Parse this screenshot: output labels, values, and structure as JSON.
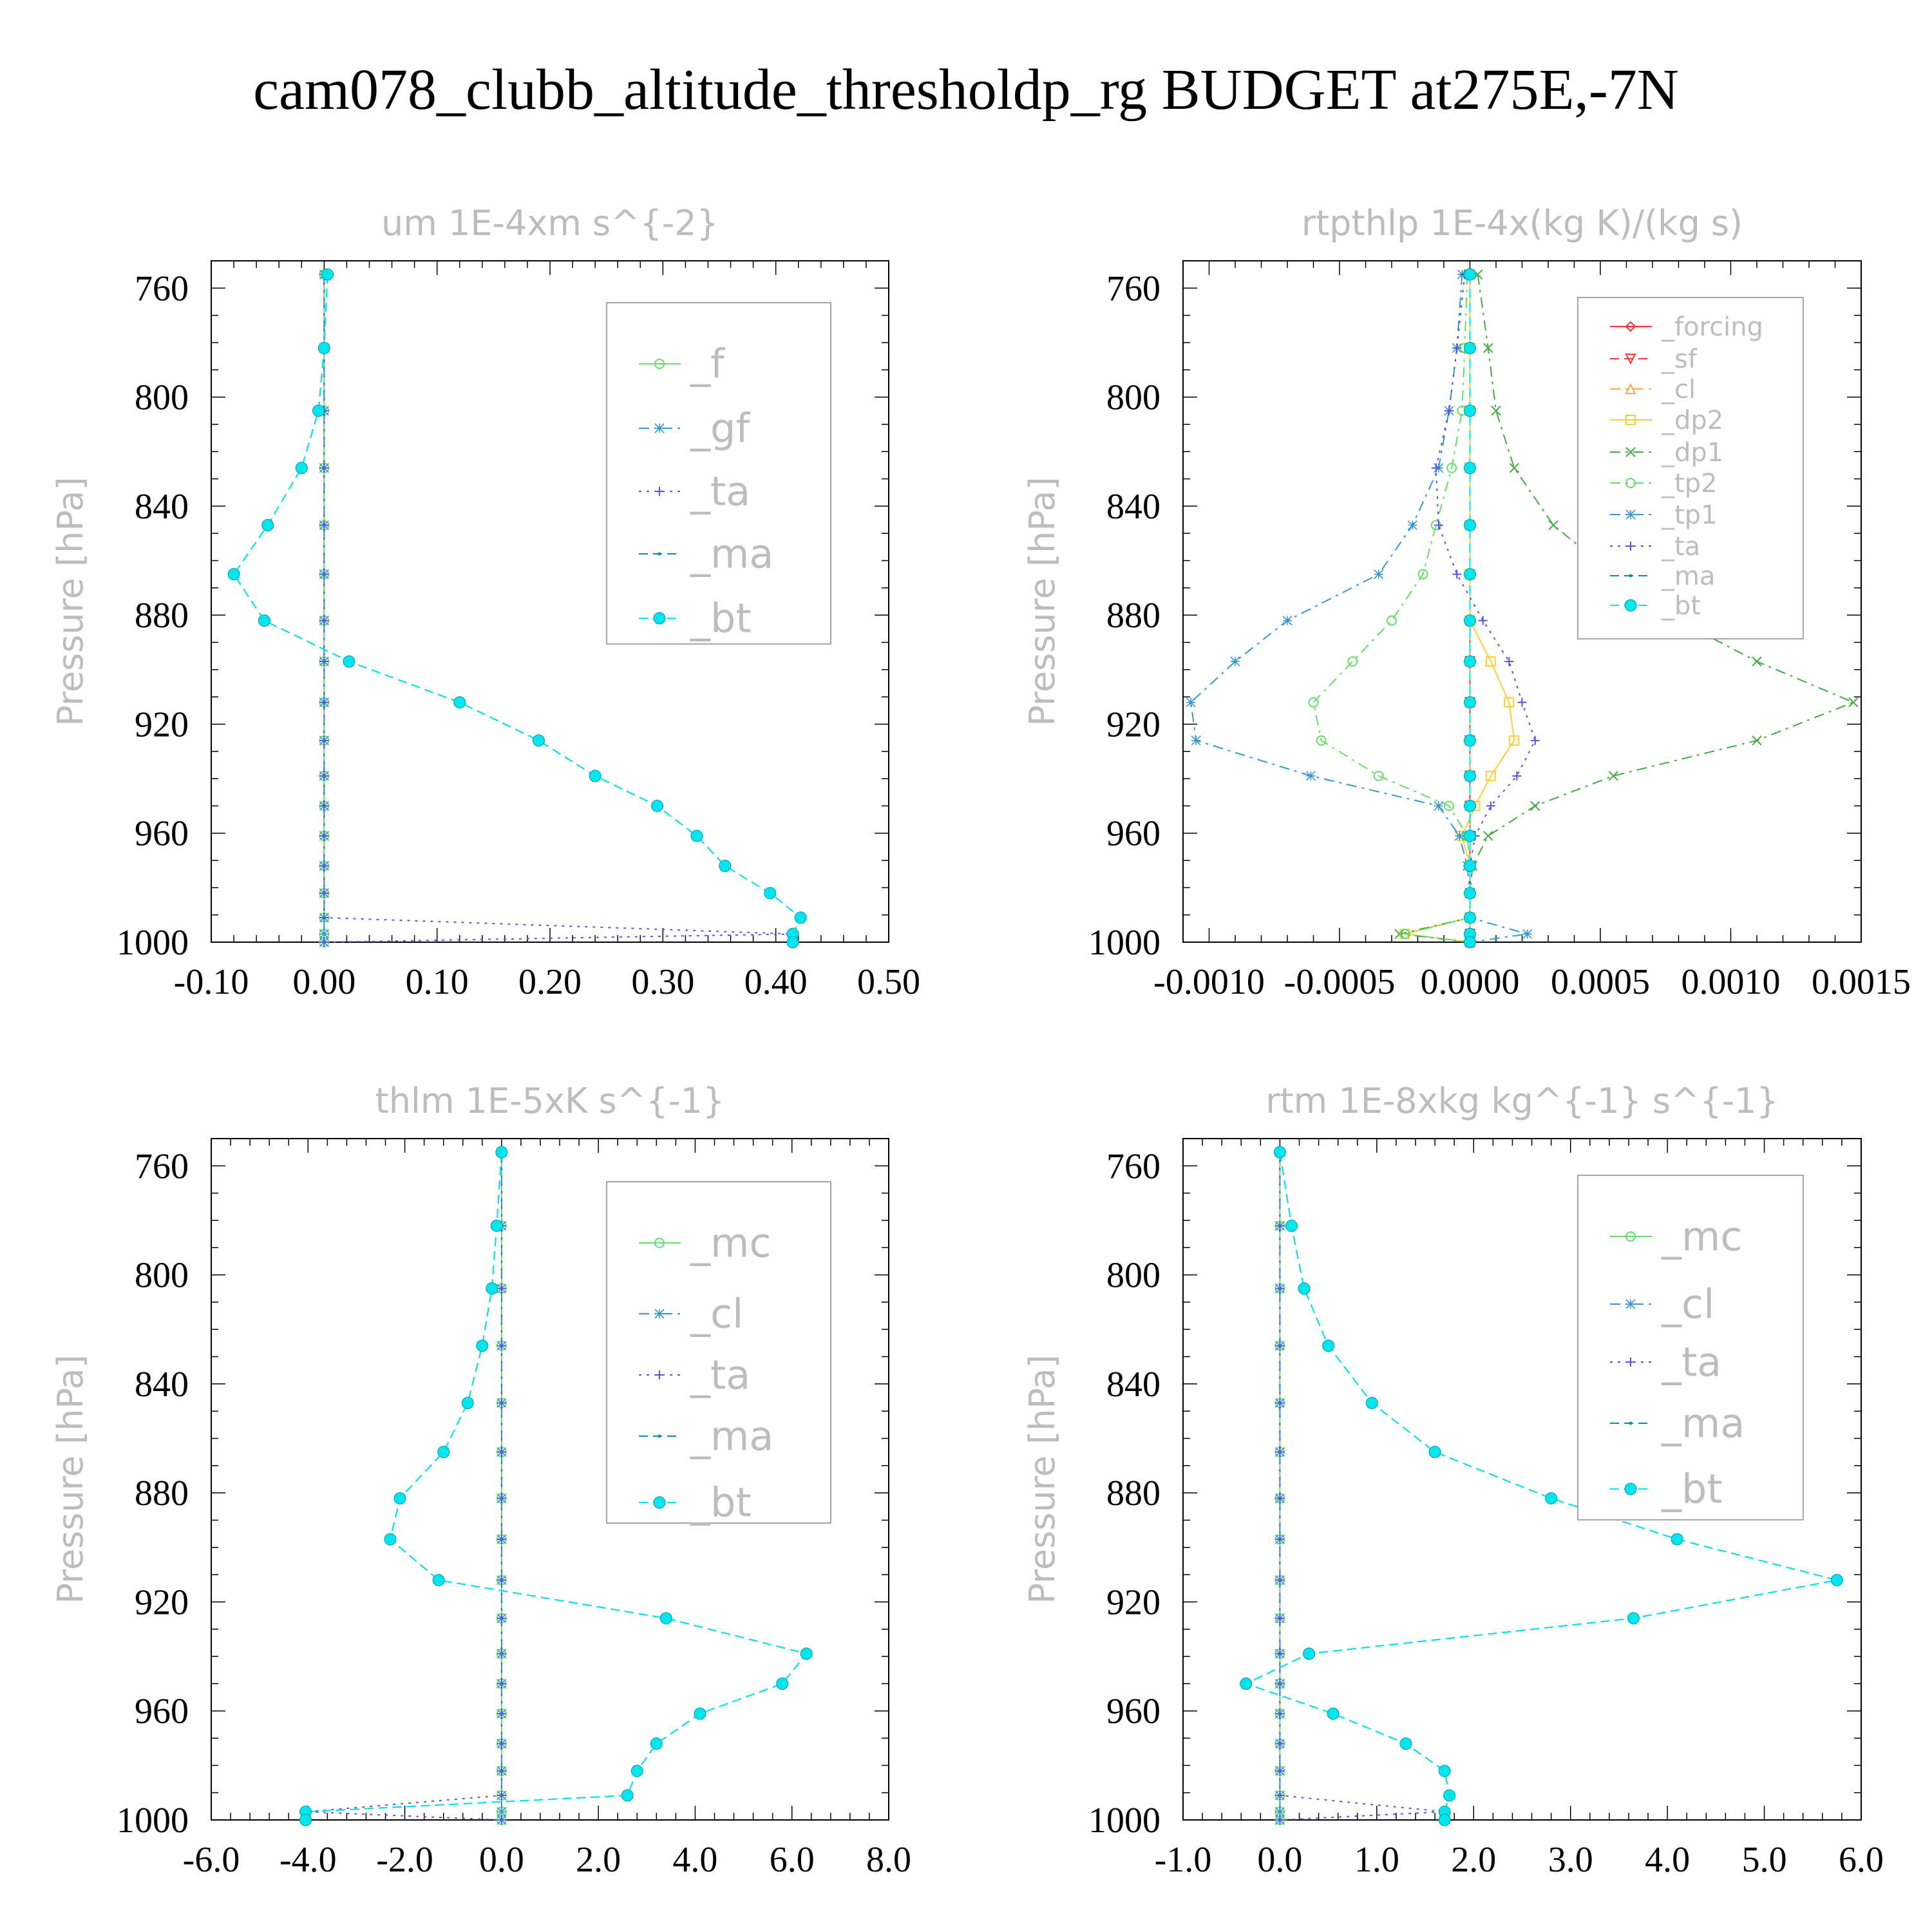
{
  "title": "cam078_clubb_altitude_thresholdp_rg  BUDGET at275E,-7N",
  "chart_data": [
    {
      "type": "line",
      "title": "um  1E-4xm s^{-2}",
      "ylabel": "Pressure [hPa]",
      "xlim": [
        -0.1,
        0.5
      ],
      "ylim": [
        1000,
        750
      ],
      "xticks": [
        "-0.10",
        "0.00",
        "0.10",
        "0.20",
        "0.30",
        "0.40",
        "0.50"
      ],
      "xtick_values": [
        -0.1,
        0.0,
        0.1,
        0.2,
        0.3,
        0.4,
        0.5
      ],
      "yticks": [
        "760",
        "800",
        "840",
        "880",
        "920",
        "960",
        "1000"
      ],
      "ytick_values": [
        760,
        800,
        840,
        880,
        920,
        960,
        1000
      ],
      "legend_placement": "top-right",
      "legend_font": 62,
      "y": [
        755,
        782,
        805,
        826,
        847,
        865,
        882,
        897,
        912,
        926,
        939,
        950,
        961,
        972,
        982,
        991,
        997,
        1000
      ],
      "series": [
        {
          "name": "_f",
          "color": "#66dd66",
          "marker": "circle",
          "dash": "solid",
          "values": [
            0,
            0,
            0,
            0,
            0,
            0,
            0,
            0,
            0,
            0,
            0,
            0,
            0,
            0,
            0,
            0,
            0,
            0
          ]
        },
        {
          "name": "_gf",
          "color": "#3399cc",
          "marker": "star",
          "dash": "dashdot",
          "values": [
            0,
            0,
            0,
            0,
            0,
            0,
            0,
            0,
            0,
            0,
            0,
            0,
            0,
            0,
            0,
            0,
            0,
            0
          ]
        },
        {
          "name": "_ta",
          "color": "#5555dd",
          "marker": "plus",
          "dash": "dot",
          "values": [
            0,
            0,
            0,
            0,
            0,
            0,
            0,
            0,
            0,
            0,
            0,
            0,
            0,
            0,
            0,
            0,
            0.415,
            0
          ]
        },
        {
          "name": "_ma",
          "color": "#1188bb",
          "marker": "dot",
          "dash": "dash",
          "values": [
            0.003,
            0.0,
            -0.005,
            -0.02,
            -0.05,
            -0.08,
            -0.053,
            0.022,
            0.12,
            0.19,
            0.24,
            0.295,
            0.33,
            0.355,
            0.395,
            0.422,
            0.415,
            0.415
          ]
        },
        {
          "name": "_bt",
          "color": "#00e5ee",
          "marker": "bigdot",
          "dash": "dash",
          "values": [
            0.003,
            0.0,
            -0.005,
            -0.02,
            -0.05,
            -0.08,
            -0.053,
            0.022,
            0.12,
            0.19,
            0.24,
            0.295,
            0.33,
            0.355,
            0.395,
            0.422,
            0.415,
            0.415
          ]
        }
      ]
    },
    {
      "type": "line",
      "title": "rtpthlp  1E-4x(kg K)/(kg s)",
      "ylabel": "Pressure [hPa]",
      "xlim": [
        -0.0011,
        0.0015
      ],
      "ylim": [
        1000,
        750
      ],
      "xticks": [
        "-0.0010",
        "-0.0005",
        "0.0000",
        "0.0005",
        "0.0010",
        "0.0015"
      ],
      "xtick_values": [
        -0.001,
        -0.0005,
        0.0,
        0.0005,
        0.001,
        0.0015
      ],
      "yticks": [
        "760",
        "800",
        "840",
        "880",
        "920",
        "960",
        "1000"
      ],
      "ytick_values": [
        760,
        800,
        840,
        880,
        920,
        960,
        1000
      ],
      "legend_placement": "top-right",
      "legend_font": 40,
      "y": [
        755,
        782,
        805,
        826,
        847,
        865,
        882,
        897,
        912,
        926,
        939,
        950,
        961,
        972,
        982,
        991,
        997,
        1000
      ],
      "series": [
        {
          "name": "_forcing",
          "color": "#ff3333",
          "marker": "diamond",
          "dash": "solid",
          "values": [
            0,
            0,
            0,
            0,
            0,
            0,
            0,
            0,
            0,
            0,
            0,
            0,
            0,
            0,
            0,
            0,
            0,
            0
          ]
        },
        {
          "name": "_sf",
          "color": "#ff3333",
          "marker": "tridown",
          "dash": "dash",
          "values": [
            0,
            0,
            0,
            0,
            0,
            0,
            0,
            0,
            0,
            0,
            0,
            0,
            0,
            0,
            0,
            0,
            0,
            0
          ]
        },
        {
          "name": "_cl",
          "color": "#ffaa44",
          "marker": "triup",
          "dash": "dashdot",
          "values": [
            0,
            0,
            0,
            0,
            0,
            0,
            0,
            0,
            0,
            0,
            0,
            0,
            0,
            0,
            0,
            0,
            0,
            0
          ]
        },
        {
          "name": "_dp2",
          "color": "#ffcc33",
          "marker": "square",
          "dash": "solid",
          "values": [
            0,
            0,
            0,
            0,
            0,
            0,
            0,
            8e-05,
            0.00015,
            0.00017,
            8e-05,
            2e-05,
            -3e-05,
            0,
            0,
            0,
            -0.00025,
            0
          ]
        },
        {
          "name": "_dp1",
          "color": "#44aa44",
          "marker": "cross",
          "dash": "dashdot",
          "values": [
            3e-05,
            7e-05,
            0.0001,
            0.00017,
            0.00032,
            0.00055,
            0.0008,
            0.0011,
            0.00147,
            0.0011,
            0.00055,
            0.00025,
            7e-05,
            1e-05,
            0,
            0,
            -0.00027,
            0
          ]
        },
        {
          "name": "_tp2",
          "color": "#66dd66",
          "marker": "circle",
          "dash": "dashdot",
          "values": [
            -1e-05,
            -2e-05,
            -3e-05,
            -7e-05,
            -0.00013,
            -0.00018,
            -0.0003,
            -0.00045,
            -0.0006,
            -0.00057,
            -0.00035,
            -8e-05,
            -1e-05,
            0,
            0,
            0,
            -0.00025,
            0
          ]
        },
        {
          "name": "_tp1",
          "color": "#3399cc",
          "marker": "star",
          "dash": "dashdot",
          "values": [
            -3e-05,
            -5e-05,
            -8e-05,
            -0.00012,
            -0.00022,
            -0.00035,
            -0.0007,
            -0.0009,
            -0.00107,
            -0.00105,
            -0.00061,
            -0.00012,
            -4e-05,
            -1e-05,
            0,
            0,
            0.00022,
            0
          ]
        },
        {
          "name": "_ta",
          "color": "#5555dd",
          "marker": "plus",
          "dash": "dot",
          "values": [
            -2e-05,
            -5e-05,
            -8e-05,
            -0.00013,
            -0.00012,
            -5e-05,
            5e-05,
            0.00015,
            0.0002,
            0.00025,
            0.00018,
            8e-05,
            2e-05,
            0,
            0,
            0,
            0,
            0
          ]
        },
        {
          "name": "_ma",
          "color": "#1188bb",
          "marker": "dot",
          "dash": "dash",
          "values": [
            0,
            0,
            0,
            0,
            0,
            0,
            0,
            0,
            0,
            0,
            0,
            0,
            0,
            0,
            0,
            0,
            0,
            0
          ]
        },
        {
          "name": "_bt",
          "color": "#00e5ee",
          "marker": "bigdot",
          "dash": "dash",
          "values": [
            0,
            0,
            0,
            0,
            0,
            0,
            0,
            0,
            0,
            0,
            0,
            0,
            0,
            0,
            0,
            0,
            0,
            0
          ]
        }
      ]
    },
    {
      "type": "line",
      "title": "thlm  1E-5xK s^{-1}",
      "ylabel": "Pressure [hPa]",
      "xlim": [
        -6,
        8
      ],
      "ylim": [
        1000,
        750
      ],
      "xticks": [
        "-6.0",
        "-4.0",
        "-2.0",
        "0.0",
        "2.0",
        "4.0",
        "6.0",
        "8.0"
      ],
      "xtick_values": [
        -6,
        -4,
        -2,
        0,
        2,
        4,
        6,
        8
      ],
      "yticks": [
        "760",
        "800",
        "840",
        "880",
        "920",
        "960",
        "1000"
      ],
      "ytick_values": [
        760,
        800,
        840,
        880,
        920,
        960,
        1000
      ],
      "legend_placement": "top-right",
      "legend_font": 62,
      "y": [
        755,
        782,
        805,
        826,
        847,
        865,
        882,
        897,
        912,
        926,
        939,
        950,
        961,
        972,
        982,
        991,
        997,
        1000
      ],
      "series": [
        {
          "name": "_mc",
          "color": "#66dd66",
          "marker": "circle",
          "dash": "solid",
          "values": [
            0,
            0,
            0,
            0,
            0,
            0,
            0,
            0,
            0,
            0,
            0,
            0,
            0,
            0,
            0,
            0,
            0,
            0
          ]
        },
        {
          "name": "_cl",
          "color": "#3399cc",
          "marker": "star",
          "dash": "dashdot",
          "values": [
            0,
            0,
            0,
            0,
            0,
            0,
            0,
            0,
            0,
            0,
            0,
            0,
            0,
            0,
            0,
            0,
            0,
            0
          ]
        },
        {
          "name": "_ta",
          "color": "#5555dd",
          "marker": "plus",
          "dash": "dot",
          "values": [
            0,
            0,
            0,
            0,
            0,
            0,
            0,
            0,
            0,
            0,
            0,
            0,
            0,
            0,
            0,
            0,
            -4.05,
            0
          ]
        },
        {
          "name": "_ma",
          "color": "#1188bb",
          "marker": "dot",
          "dash": "dash",
          "values": [
            0,
            -0.1,
            -0.2,
            -0.4,
            -0.7,
            -1.2,
            -2.1,
            -2.3,
            -1.3,
            3.4,
            6.3,
            5.8,
            4.1,
            3.2,
            2.8,
            2.6,
            -4.05,
            -4.05
          ]
        },
        {
          "name": "_bt",
          "color": "#00e5ee",
          "marker": "bigdot",
          "dash": "dash",
          "values": [
            0,
            -0.1,
            -0.2,
            -0.4,
            -0.7,
            -1.2,
            -2.1,
            -2.3,
            -1.3,
            3.4,
            6.3,
            5.8,
            4.1,
            3.2,
            2.8,
            2.6,
            -4.05,
            -4.05
          ]
        }
      ]
    },
    {
      "type": "line",
      "title": "rtm  1E-8xkg kg^{-1} s^{-1}",
      "ylabel": "Pressure [hPa]",
      "xlim": [
        -1,
        6
      ],
      "ylim": [
        1000,
        750
      ],
      "xticks": [
        "-1.0",
        "0.0",
        "1.0",
        "2.0",
        "3.0",
        "4.0",
        "5.0",
        "6.0"
      ],
      "xtick_values": [
        -1,
        0,
        1,
        2,
        3,
        4,
        5,
        6
      ],
      "yticks": [
        "760",
        "800",
        "840",
        "880",
        "920",
        "960",
        "1000"
      ],
      "ytick_values": [
        760,
        800,
        840,
        880,
        920,
        960,
        1000
      ],
      "legend_placement": "top-right",
      "legend_font": 62,
      "y": [
        755,
        782,
        805,
        826,
        847,
        865,
        882,
        897,
        912,
        926,
        939,
        950,
        961,
        972,
        982,
        991,
        997,
        1000
      ],
      "series": [
        {
          "name": "_mc",
          "color": "#66dd66",
          "marker": "circle",
          "dash": "solid",
          "values": [
            0,
            0,
            0,
            0,
            0,
            0,
            0,
            0,
            0,
            0,
            0,
            0,
            0,
            0,
            0,
            0,
            0,
            0
          ]
        },
        {
          "name": "_cl",
          "color": "#3399cc",
          "marker": "star",
          "dash": "dashdot",
          "values": [
            0,
            0,
            0,
            0,
            0,
            0,
            0,
            0,
            0,
            0,
            0,
            0,
            0,
            0,
            0,
            0,
            0,
            0
          ]
        },
        {
          "name": "_ta",
          "color": "#5555dd",
          "marker": "plus",
          "dash": "dot",
          "values": [
            0,
            0,
            0,
            0,
            0,
            0,
            0,
            0,
            0,
            0,
            0,
            0,
            0,
            0,
            0,
            0,
            1.7,
            0
          ]
        },
        {
          "name": "_ma",
          "color": "#1188bb",
          "marker": "dot",
          "dash": "dash",
          "values": [
            0,
            0.12,
            0.25,
            0.5,
            0.95,
            1.6,
            2.8,
            4.1,
            5.75,
            3.65,
            0.3,
            -0.35,
            0.55,
            1.3,
            1.7,
            1.75,
            1.7,
            1.7
          ]
        },
        {
          "name": "_bt",
          "color": "#00e5ee",
          "marker": "bigdot",
          "dash": "dash",
          "values": [
            0,
            0.12,
            0.25,
            0.5,
            0.95,
            1.6,
            2.8,
            4.1,
            5.75,
            3.65,
            0.3,
            -0.35,
            0.55,
            1.3,
            1.7,
            1.75,
            1.7,
            1.7
          ]
        }
      ]
    }
  ]
}
